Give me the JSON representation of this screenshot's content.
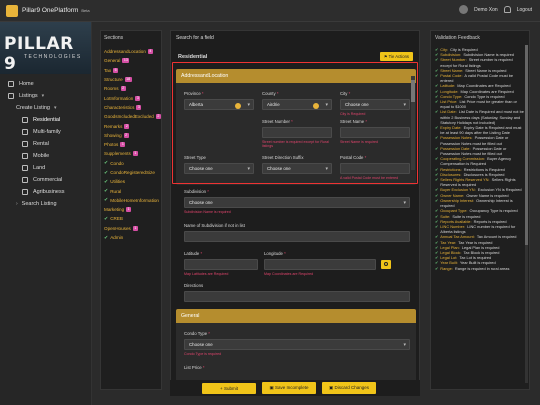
{
  "app": {
    "title": "Pillar9 OnePlatform",
    "beta": "Beta",
    "user": "Demo Xon",
    "logout": "Logout"
  },
  "brand": {
    "name": "PILLAR 9",
    "sub": "TECHNOLOGIES"
  },
  "nav": {
    "home": "Home",
    "listings": "Listings",
    "create_listing": "Create Listing",
    "residential": "Residential",
    "multi_family": "Multi-family",
    "rental": "Rental",
    "mobile": "Mobile",
    "land": "Land",
    "commercial": "Commercial",
    "agribusiness": "Agribusiness",
    "search_listing": "Search Listing"
  },
  "sections": {
    "title": "Sections",
    "items": [
      {
        "label": "AddressandLocation",
        "badge": "4",
        "check": false
      },
      {
        "label": "General",
        "badge": "13",
        "check": false
      },
      {
        "label": "Tax",
        "badge": "6",
        "check": false
      },
      {
        "label": "Structure",
        "badge": "18",
        "check": false
      },
      {
        "label": "Rooms",
        "badge": "2",
        "check": false
      },
      {
        "label": "LotInformation",
        "badge": "3",
        "check": false
      },
      {
        "label": "Characteristics",
        "badge": "3",
        "check": false
      },
      {
        "label": "GoodsIncludedExcluded",
        "badge": "2",
        "check": false
      },
      {
        "label": "Remarks",
        "badge": "2",
        "check": false
      },
      {
        "label": "Showing",
        "badge": "2",
        "check": false
      },
      {
        "label": "Photos",
        "badge": "1",
        "check": false
      },
      {
        "label": "Supplements",
        "badge": "1",
        "check": false
      },
      {
        "label": "Condo",
        "badge": "",
        "check": true
      },
      {
        "label": "CondoRegisteredSize",
        "badge": "",
        "check": true
      },
      {
        "label": "Utilities",
        "badge": "",
        "check": true
      },
      {
        "label": "Rural",
        "badge": "",
        "check": true
      },
      {
        "label": "MobileHomeInformation",
        "badge": "",
        "check": true
      },
      {
        "label": "Marketing",
        "badge": "1",
        "check": false
      },
      {
        "label": "CREB",
        "badge": "",
        "check": true
      },
      {
        "label": "OpenHouses",
        "badge": "1",
        "check": false
      },
      {
        "label": "Admin",
        "badge": "",
        "check": true
      }
    ]
  },
  "main": {
    "search_label": "Search for a field",
    "residential": "Residential",
    "tie_actions": "Tie Actions",
    "address_title": "AddressandLocation",
    "general_title": "General",
    "fields": {
      "province": {
        "label": "Province",
        "value": "Alberta"
      },
      "county": {
        "label": "County",
        "value": "Airdrie"
      },
      "city": {
        "label": "City",
        "value": "Choose one",
        "error": "City is Required"
      },
      "street_number": {
        "label": "Street Number",
        "error": "Street number is required except for Rural listings"
      },
      "street_name": {
        "label": "Street Name",
        "error": "Street Name is required"
      },
      "street_type": {
        "label": "Street Type",
        "value": "Choose one"
      },
      "street_direction": {
        "label": "Street Direction Suffix",
        "value": "Choose one"
      },
      "postal_code": {
        "label": "Postal Code",
        "error": "A valid Postal Code must be entered"
      },
      "subdivision": {
        "label": "Subdivision",
        "value": "Choose one",
        "error": "Subdivision Name is required"
      },
      "subdivision_other": {
        "label": "Name of Subdivision if not in list"
      },
      "latitude": {
        "label": "Latitude",
        "error": "Map Latitudes are Required"
      },
      "longitude": {
        "label": "Longitude",
        "error": "Map Coordinates are Required"
      },
      "directions": {
        "label": "Directions"
      },
      "condo_type": {
        "label": "Condo Type",
        "value": "Choose one",
        "error": "Condo Type is required"
      },
      "list_price": {
        "label": "List Price"
      }
    },
    "buttons": {
      "submit": "Submit",
      "save_incomplete": "Save Incomplete",
      "discard": "Discard Changes"
    }
  },
  "validation": {
    "title": "Validation Feedback",
    "items": [
      {
        "field": "City:",
        "text": "City is Required"
      },
      {
        "field": "Subdivision:",
        "text": "Subdivision Name is required"
      },
      {
        "field": "Street Number:",
        "text": "Street number is required except for Rural listings"
      },
      {
        "field": "Street Name:",
        "text": "Street Name is required"
      },
      {
        "field": "Postal Code:",
        "text": "A valid Postal Code must be entered"
      },
      {
        "field": "Latitude:",
        "text": "Map Coordinates are Required"
      },
      {
        "field": "Longitude:",
        "text": "Map Coordinates are Required"
      },
      {
        "field": "Condo Type:",
        "text": "Condo Type is required"
      },
      {
        "field": "List Price:",
        "text": "List Price must be greater than or equal to $1000"
      },
      {
        "field": "List Date:",
        "text": "List Date is Required and must not be within 2 Business days (Saturday, Sunday and Statutory Holidays not included)"
      },
      {
        "field": "Expiry Date:",
        "text": "Expiry Date is Required and must be at least 90 days after the Listing Date"
      },
      {
        "field": "Possession Notes:",
        "text": "Possession Date or Possession Notes must be filled out"
      },
      {
        "field": "Possession Date:",
        "text": "Possession Date or Possession Notes must be filled out"
      },
      {
        "field": "Cooperating Commission:",
        "text": "Buyer Agency Compensation is Required"
      },
      {
        "field": "Restrictions:",
        "text": "Restrictions is Required"
      },
      {
        "field": "Disclosures:",
        "text": "Disclosures is Required"
      },
      {
        "field": "Sellers Rights Reserved YN:",
        "text": "Sellers Rights Reserved is required"
      },
      {
        "field": "Buyer Exclusion YN:",
        "text": "Exclusion YN is Required"
      },
      {
        "field": "Owner Name:",
        "text": "Owner Name is required"
      },
      {
        "field": "Ownership Interest:",
        "text": "Ownership Interest is required"
      },
      {
        "field": "Occupant Type:",
        "text": "Occupancy Type is required"
      },
      {
        "field": "Suite:",
        "text": "Suite is required"
      },
      {
        "field": "Reports Available:",
        "text": "Reports is required"
      },
      {
        "field": "LINC Number:",
        "text": "LINC number is required for Alberta listings"
      },
      {
        "field": "Annual Tax Amount:",
        "text": "Tax Amount is required"
      },
      {
        "field": "Tax Year:",
        "text": "Tax Year is required"
      },
      {
        "field": "Legal Plan:",
        "text": "Legal Plan is required"
      },
      {
        "field": "Legal Block:",
        "text": "Tax Block is required"
      },
      {
        "field": "Legal Lot:",
        "text": "Tax Lot is required"
      },
      {
        "field": "Year Built:",
        "text": "Year Built is required"
      },
      {
        "field": "Range:",
        "text": "Range is required in rural areas"
      }
    ]
  },
  "colors": {
    "accent": "#f0c419",
    "group_header": "#b58d2e",
    "error": "#e0446c",
    "badge": "#d64fa5",
    "check": "#6ac77c"
  }
}
